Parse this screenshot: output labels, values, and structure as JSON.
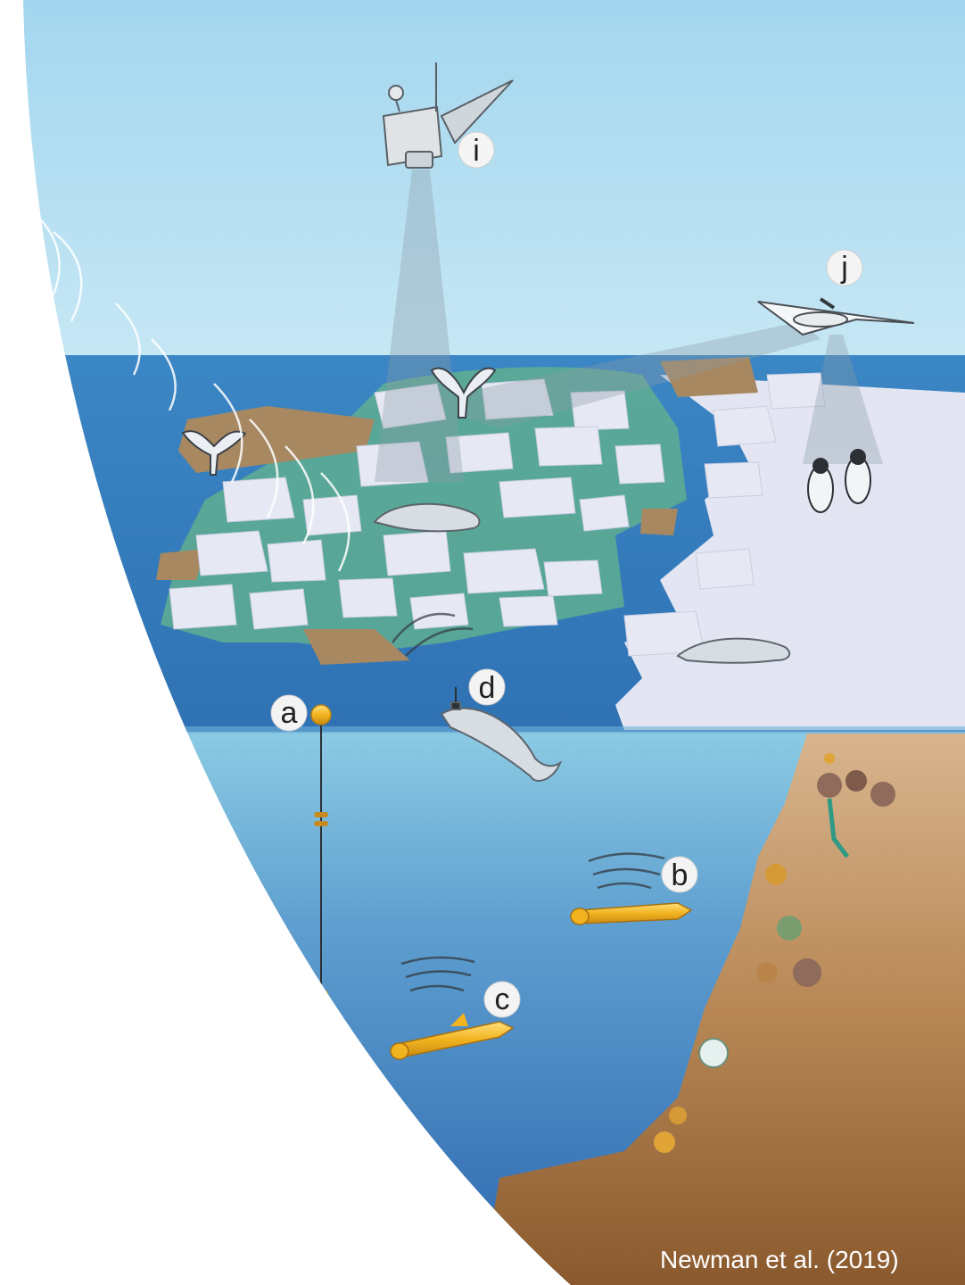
{
  "labels": {
    "a": "a",
    "b": "b",
    "c": "c",
    "d": "d",
    "i": "i",
    "j": "j"
  },
  "cut_text": "al",
  "credit": "Newman et al. (2019)",
  "colors": {
    "sky_top": "#a6d8f0",
    "sky_bottom": "#c4e6f3",
    "sea_surface": "#3f86c2",
    "ocean_deep": "#2e6db0",
    "ice": "#e4e7f3",
    "polynya_green": "#5fae91",
    "seabed": "#8a5a2e",
    "instrument_yellow": "#f2b320"
  },
  "icons": [
    "satellite-icon",
    "drone-icon",
    "whale-tail-icon",
    "seal-icon",
    "penguin-icon",
    "mooring-buoy-icon",
    "auv-icon",
    "glider-icon",
    "benthic-fauna-icon"
  ]
}
